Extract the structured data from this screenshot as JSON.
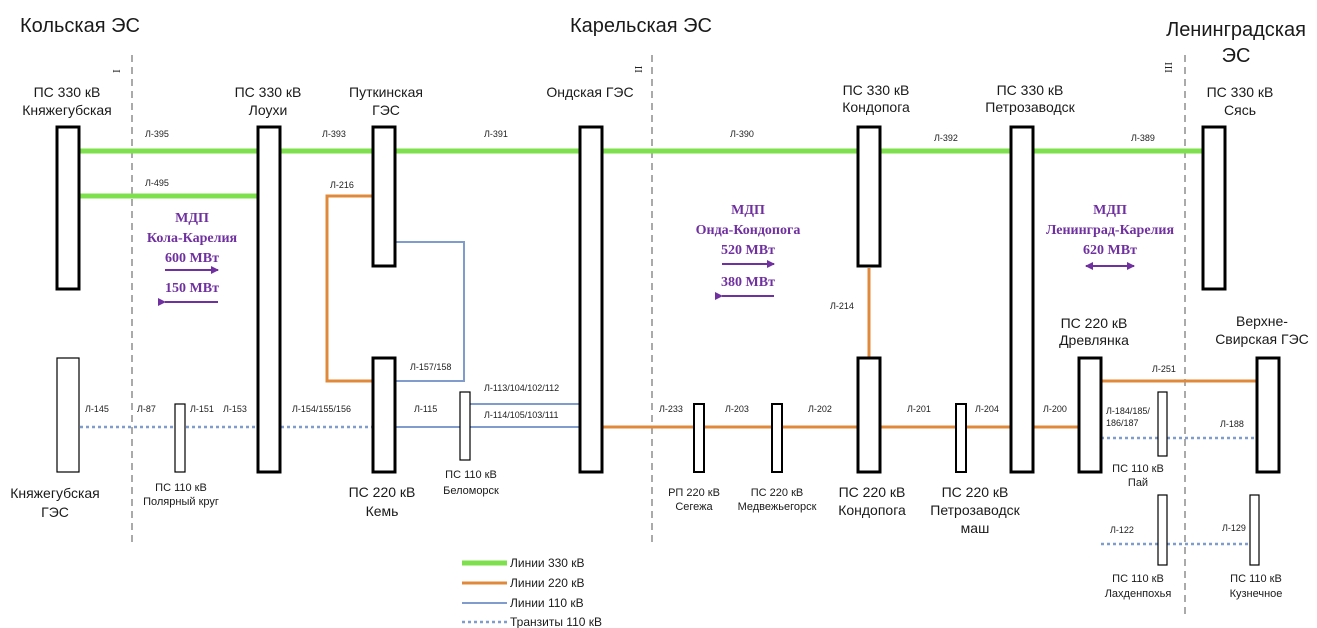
{
  "colors": {
    "line_330": "#7ee04d",
    "line_220": "#e0893a",
    "line_110": "#7f9ccd",
    "transit_110": "#7f9ccd",
    "mdp": "#7030a0",
    "bus": "#000000"
  },
  "systems": {
    "kola": "Кольская ЭС",
    "karelia": "Карельская ЭС",
    "leningrad_1": "Ленинградская",
    "leningrad_2": "ЭС"
  },
  "boundaries": [
    "I",
    "II",
    "III"
  ],
  "stations": {
    "knyazhegubskaya_ps": [
      "ПС 330 кВ",
      "Княжегубская"
    ],
    "loukhi": [
      "ПС 330 кВ",
      "Лоухи"
    ],
    "putkinskaya": [
      "Путкинская",
      "ГЭС"
    ],
    "ondskaya": [
      "Ондская ГЭС"
    ],
    "kondopoga_330": [
      "ПС 330 кВ",
      "Кондопога"
    ],
    "petrozavodsk_330": [
      "ПС 330 кВ",
      "Петрозаводск"
    ],
    "syas": [
      "ПС 330 кВ",
      "Сясь"
    ],
    "drevlyanka": [
      "ПС 220 кВ",
      "Древлянка"
    ],
    "verkhne_svirskaya": [
      "Верхне-",
      "Свирская ГЭС"
    ],
    "knyazhegubskaya_ges": [
      "Княжегубская",
      "ГЭС"
    ],
    "polyarny_krug": [
      "ПС 110 кВ",
      "Полярный круг"
    ],
    "kem": [
      "ПС 220 кВ",
      "Кемь"
    ],
    "belomorsk": [
      "ПС 110 кВ",
      "Беломорск"
    ],
    "segezha": [
      "РП 220 кВ",
      "Сегежа"
    ],
    "medvezhyegorsk": [
      "ПС 220 кВ",
      "Медвежьегорск"
    ],
    "kondopoga_220": [
      "ПС 220 кВ",
      "Кондопога"
    ],
    "petrozavodskmash": [
      "ПС 220 кВ",
      "Петрозаводск",
      "маш"
    ],
    "pai": [
      "ПС 110 кВ",
      "Пай"
    ],
    "lakhdenpokhya": [
      "ПС 110 кВ",
      "Лахденпохья"
    ],
    "kuznechnoe": [
      "ПС 110 кВ",
      "Кузнечное"
    ]
  },
  "line_labels": {
    "l395": "Л-395",
    "l393": "Л-393",
    "l391": "Л-391",
    "l390": "Л-390",
    "l392": "Л-392",
    "l389": "Л-389",
    "l495": "Л-495",
    "l216": "Л-216",
    "l214": "Л-214",
    "l157": "Л-157/158",
    "l113": "Л-113/104/102/112",
    "l114": "Л-114/105/103/111",
    "l145": "Л-145",
    "l87": "Л-87",
    "l151": "Л-151",
    "l153": "Л-153",
    "l154": "Л-154/155/156",
    "l115": "Л-115",
    "l233": "Л-233",
    "l203": "Л-203",
    "l202": "Л-202",
    "l201": "Л-201",
    "l204": "Л-204",
    "l200": "Л-200",
    "l251": "Л-251",
    "l184a": "Л-184/185/",
    "l184b": "186/187",
    "l188": "Л-188",
    "l122": "Л-122",
    "l129": "Л-129"
  },
  "mdp": {
    "kola_karelia": {
      "title": "МДП",
      "name": "Кола-Карелия",
      "forward": "600 МВт",
      "reverse": "150 МВт"
    },
    "onda_kondopoga": {
      "title": "МДП",
      "name": "Онда-Кондопога",
      "forward": "520 МВт",
      "reverse": "380 МВт"
    },
    "leningrad_karelia": {
      "title": "МДП",
      "name": "Ленинград-Карелия",
      "value": "620 МВт"
    }
  },
  "legend": [
    {
      "label": "Линии 330 кВ",
      "style": "line_330"
    },
    {
      "label": "Линии 220 кВ",
      "style": "line_220"
    },
    {
      "label": "Линии 110 кВ",
      "style": "line_110"
    },
    {
      "label": "Транзиты 110 кВ",
      "style": "transit_110"
    }
  ]
}
